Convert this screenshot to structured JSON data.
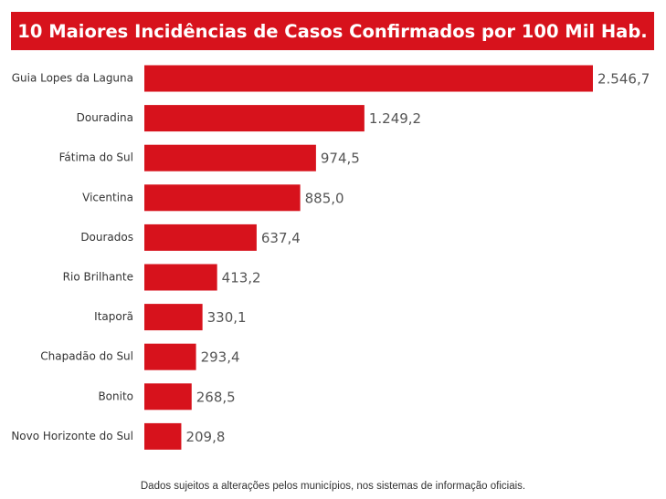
{
  "chart_data": {
    "type": "bar",
    "orientation": "horizontal",
    "title": "10 Maiores Incidências de Casos Confirmados por 100 Mil Hab.",
    "categories": [
      "Guia Lopes da Laguna",
      "Douradina",
      "Fátima do Sul",
      "Vicentina",
      "Dourados",
      "Rio Brilhante",
      "Itaporã",
      "Chapadão do Sul",
      "Bonito",
      "Novo Horizonte do Sul"
    ],
    "values": [
      2546.7,
      1249.2,
      974.5,
      885.0,
      637.4,
      413.2,
      330.1,
      293.4,
      268.5,
      209.8
    ],
    "value_labels": [
      "2.546,7",
      "1.249,2",
      "974,5",
      "885,0",
      "637,4",
      "413,2",
      "330,1",
      "293,4",
      "268,5",
      "209,8"
    ],
    "xlabel": "",
    "ylabel": "",
    "xlim": [
      0,
      2546.7
    ],
    "grid": false,
    "legend": "none",
    "bar_color": "#d7121c",
    "title_background": "#d7121c"
  },
  "footnote": "Dados sujeitos a alterações pelos municípios, nos sistemas de informação oficiais."
}
